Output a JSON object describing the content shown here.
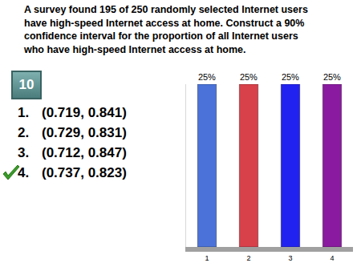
{
  "question_lines": [
    "A survey found 195 of 250 randomly selected Internet users",
    "have high-speed Internet access at home. Construct a 90%",
    "confidence interval for the proportion of all Internet users",
    "who have high-speed Internet access at home."
  ],
  "counter": "10",
  "answers": [
    {
      "label": "1.",
      "text": "(0.719, 0.841)"
    },
    {
      "label": "2.",
      "text": "(0.729, 0.831)"
    },
    {
      "label": "3.",
      "text": "(0.712, 0.847)"
    },
    {
      "label": "4.",
      "text": "(0.737, 0.823)"
    }
  ],
  "correct_answer": 4,
  "chart_data": {
    "type": "bar",
    "categories": [
      "1",
      "2",
      "3",
      "4"
    ],
    "values": [
      25,
      25,
      25,
      25
    ],
    "value_labels": [
      "25%",
      "25%",
      "25%",
      "25%"
    ],
    "colors": [
      "#4a72d8",
      "#d8404a",
      "#2222f0",
      "#8a1aa0"
    ],
    "ylim": [
      0,
      25
    ],
    "yticks": [],
    "data_labels": true,
    "tick_labels": "x",
    "grid": false
  }
}
